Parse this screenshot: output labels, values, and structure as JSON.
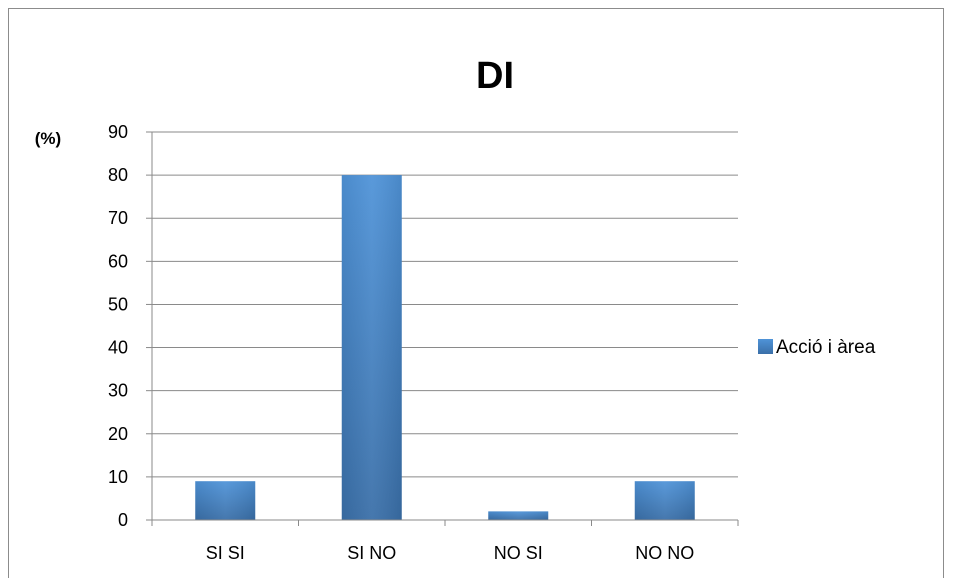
{
  "chart_data": {
    "type": "bar",
    "title": "DI",
    "ylabel": "(%)",
    "xlabel": "",
    "categories": [
      "SI SI",
      "SI NO",
      "NO SI",
      "NO NO"
    ],
    "series": [
      {
        "name": "Acció i àrea",
        "values": [
          9,
          80,
          2,
          9
        ],
        "color": "#4a86c8"
      }
    ],
    "ylim": [
      0,
      90
    ],
    "yticks": [
      0,
      10,
      20,
      30,
      40,
      50,
      60,
      70,
      80,
      90
    ],
    "grid": true,
    "legend": "right"
  }
}
